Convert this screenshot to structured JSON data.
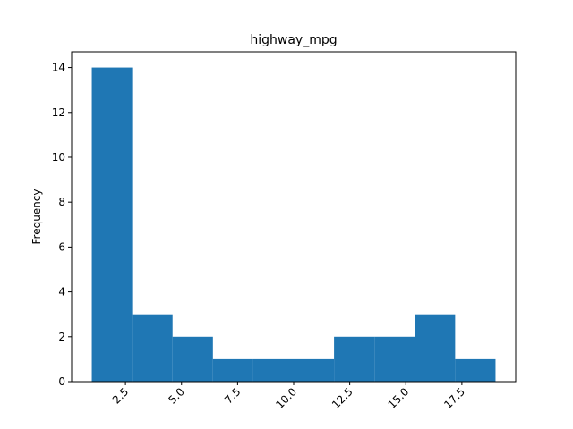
{
  "chart_data": {
    "type": "bar",
    "title": "highway_mpg",
    "xlabel": "",
    "ylabel": "Frequency",
    "bin_edges": [
      1,
      2.8,
      4.6,
      6.4,
      8.2,
      10.0,
      11.8,
      13.6,
      15.4,
      17.2,
      19.0
    ],
    "values": [
      14,
      3,
      2,
      1,
      1,
      1,
      2,
      2,
      3,
      1
    ],
    "xlim": [
      0.1,
      19.9
    ],
    "ylim": [
      0,
      14.7
    ],
    "x_ticks": [
      2.5,
      5.0,
      7.5,
      10.0,
      12.5,
      15.0,
      17.5
    ],
    "x_tick_labels": [
      "2.5",
      "5.0",
      "7.5",
      "10.0",
      "12.5",
      "15.0",
      "17.5"
    ],
    "y_ticks": [
      0,
      2,
      4,
      6,
      8,
      10,
      12,
      14
    ],
    "y_tick_labels": [
      "0",
      "2",
      "4",
      "6",
      "8",
      "10",
      "12",
      "14"
    ],
    "bar_color": "#1f77b4",
    "grid": false,
    "legend": "none"
  }
}
